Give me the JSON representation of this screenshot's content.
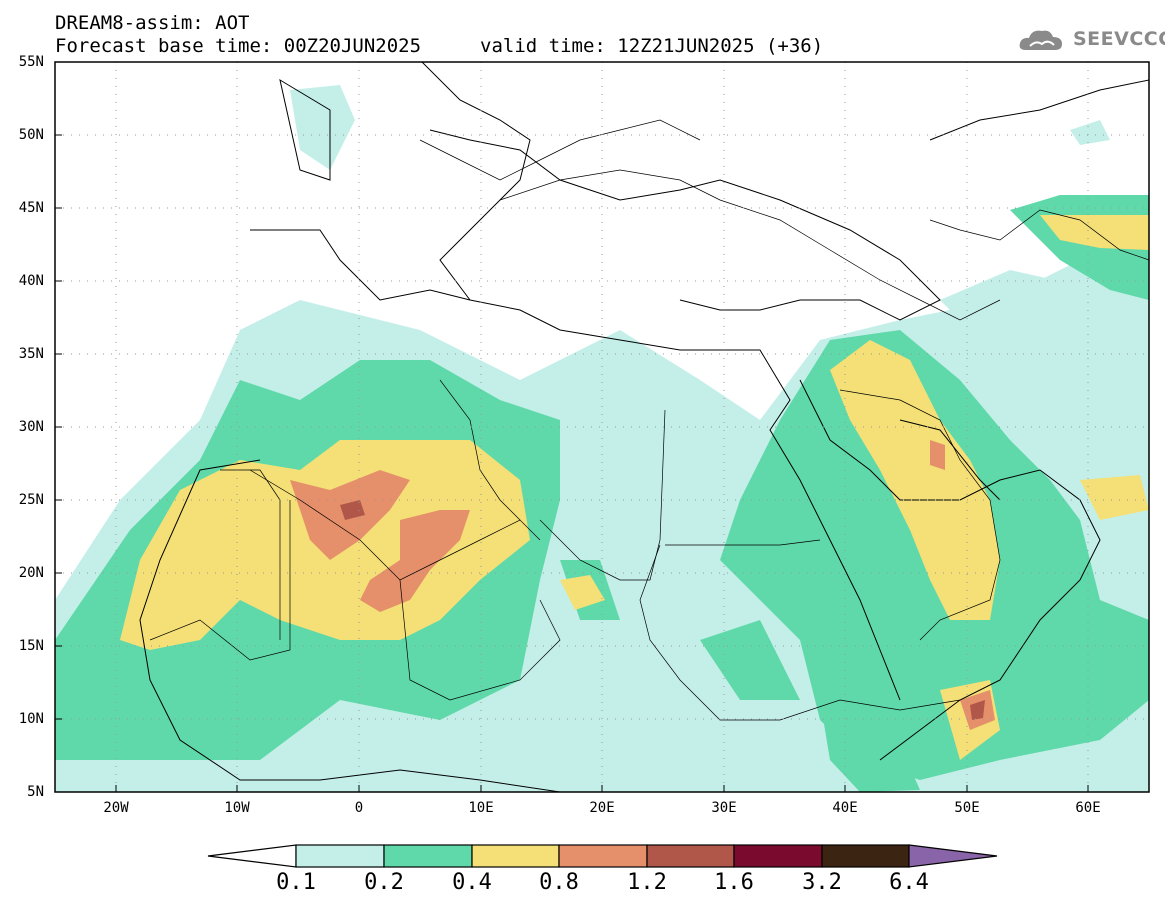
{
  "title": {
    "line1": "DREAM8-assim: AOT",
    "line2": "Forecast base time: 00Z20JUN2025",
    "valid": "valid time: 12Z21JUN2025 (+36)"
  },
  "logo": {
    "text": "SEEVCCC",
    "icon": "cloud-logo-icon"
  },
  "map": {
    "region": "North Africa, Mediterranean, Middle East",
    "lat_ticks": [
      "55N",
      "50N",
      "45N",
      "40N",
      "35N",
      "30N",
      "25N",
      "20N",
      "15N",
      "10N",
      "5N"
    ],
    "lon_ticks": [
      "20W",
      "10W",
      "0",
      "10E",
      "20E",
      "30E",
      "40E",
      "50E",
      "60E"
    ]
  },
  "colorbar": {
    "labels": [
      "0.1",
      "0.2",
      "0.4",
      "0.8",
      "1.2",
      "1.6",
      "3.2",
      "6.4"
    ],
    "colors": [
      "#c4efe9",
      "#5fd9a9",
      "#f4e076",
      "#e5906a",
      "#b0574a",
      "#7a0a2e",
      "#3b2412",
      "#8a64a8"
    ]
  }
}
